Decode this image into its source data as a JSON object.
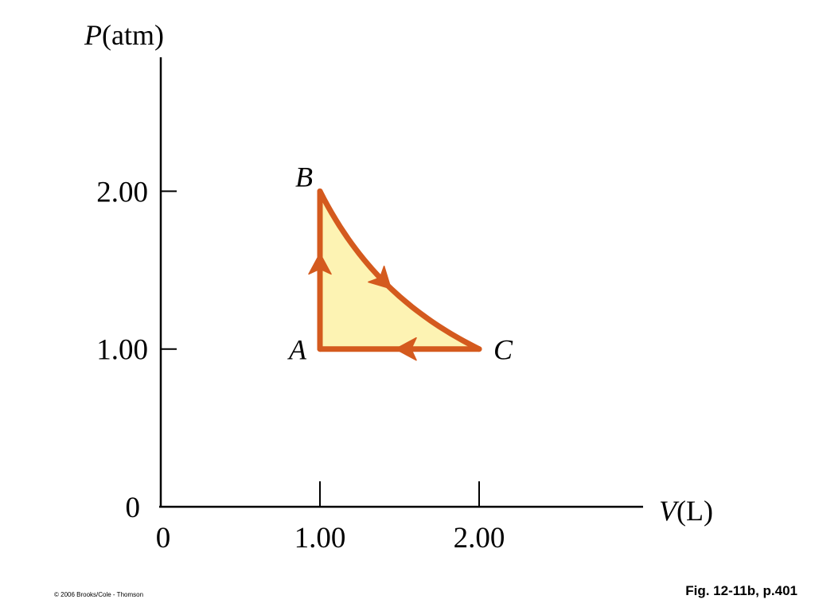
{
  "chart_data": {
    "type": "line",
    "title": "",
    "y_axis": {
      "symbol": "P",
      "unit": "(atm)"
    },
    "x_axis": {
      "symbol": "V",
      "unit": "(L)"
    },
    "xlim": [
      0,
      3.0
    ],
    "ylim": [
      0,
      2.95
    ],
    "x_ticks": [
      {
        "value": 0,
        "label": "0"
      },
      {
        "value": 1.0,
        "label": "1.00"
      },
      {
        "value": 2.0,
        "label": "2.00"
      }
    ],
    "y_ticks": [
      {
        "value": 0,
        "label": "0"
      },
      {
        "value": 1.0,
        "label": "1.00"
      },
      {
        "value": 2.0,
        "label": "2.00"
      }
    ],
    "grid": false,
    "cycle_fill_color": "#fdf3b3",
    "line_color": "#d45a1e",
    "points": [
      {
        "label": "A",
        "x": 1.0,
        "y": 1.0
      },
      {
        "label": "B",
        "x": 1.0,
        "y": 2.0
      },
      {
        "label": "C",
        "x": 2.0,
        "y": 1.0
      }
    ],
    "segments": [
      {
        "from": "A",
        "to": "B",
        "kind": "isochoric"
      },
      {
        "from": "B",
        "to": "C",
        "kind": "curve"
      },
      {
        "from": "C",
        "to": "A",
        "kind": "isobaric"
      }
    ]
  },
  "caption": "Fig. 12-11b, p.401",
  "copyright": "© 2006 Brooks/Cole - Thomson"
}
